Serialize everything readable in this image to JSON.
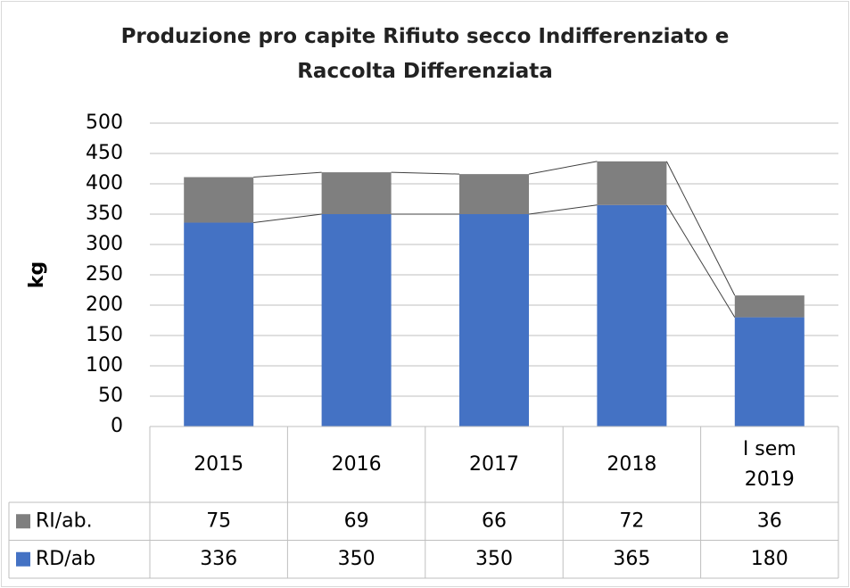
{
  "chart_data": {
    "type": "stacked_bar",
    "title": "Produzione pro capite Rifiuto secco Indifferenziato e\nRaccolta Differenziata",
    "y_label": "kg",
    "categories": [
      "2015",
      "2016",
      "2017",
      "2018",
      "I sem\n2019"
    ],
    "series": [
      {
        "name": "RD/ab",
        "color": "#4472c4",
        "values": [
          336,
          350,
          350,
          365,
          180
        ]
      },
      {
        "name": "RI/ab.",
        "color": "#7f7f7f",
        "values": [
          75,
          69,
          66,
          72,
          36
        ]
      }
    ],
    "ylim": [
      0,
      500
    ],
    "yticks": [
      0,
      50,
      100,
      150,
      200,
      250,
      300,
      350,
      400,
      450,
      500
    ],
    "grid": true,
    "data_table": true
  }
}
